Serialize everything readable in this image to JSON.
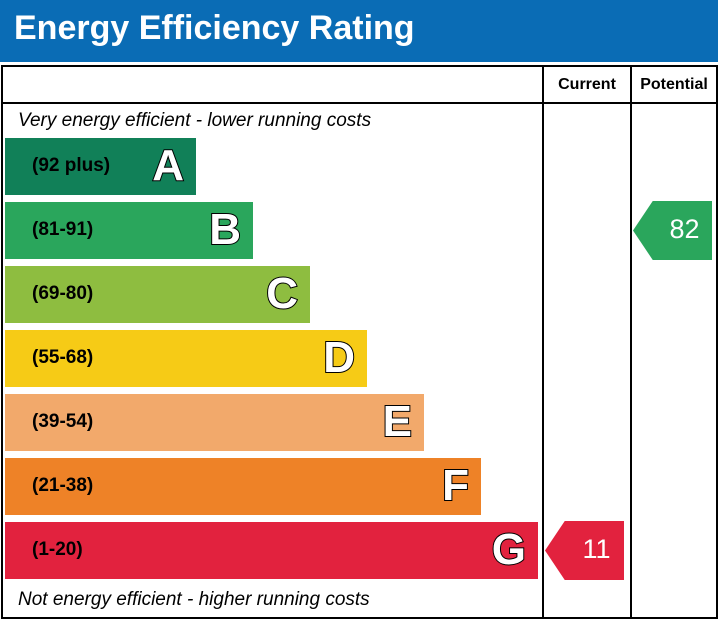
{
  "header": {
    "title": "Energy Efficiency Rating"
  },
  "columns": {
    "current": "Current",
    "potential": "Potential"
  },
  "captions": {
    "top": "Very energy efficient - lower running costs",
    "bottom": "Not energy efficient - higher running costs"
  },
  "chart_data": {
    "type": "bar",
    "title": "Energy Efficiency Rating",
    "bands": [
      {
        "letter": "A",
        "range": "(92 plus)",
        "min": 92,
        "color": "#118058"
      },
      {
        "letter": "B",
        "range": "(81-91)",
        "min": 81,
        "color": "#2aa65c"
      },
      {
        "letter": "C",
        "range": "(69-80)",
        "min": 69,
        "color": "#8ebd40"
      },
      {
        "letter": "D",
        "range": "(55-68)",
        "min": 55,
        "color": "#f6cb16"
      },
      {
        "letter": "E",
        "range": "(39-54)",
        "min": 39,
        "color": "#f2a96b"
      },
      {
        "letter": "F",
        "range": "(21-38)",
        "min": 21,
        "color": "#ee8227"
      },
      {
        "letter": "G",
        "range": "(1-20)",
        "min": 1,
        "color": "#e2223e"
      }
    ],
    "current": {
      "value": "11",
      "band": "G",
      "color": "#e2223e"
    },
    "potential": {
      "value": "82",
      "band": "B",
      "color": "#2aa65c"
    }
  }
}
